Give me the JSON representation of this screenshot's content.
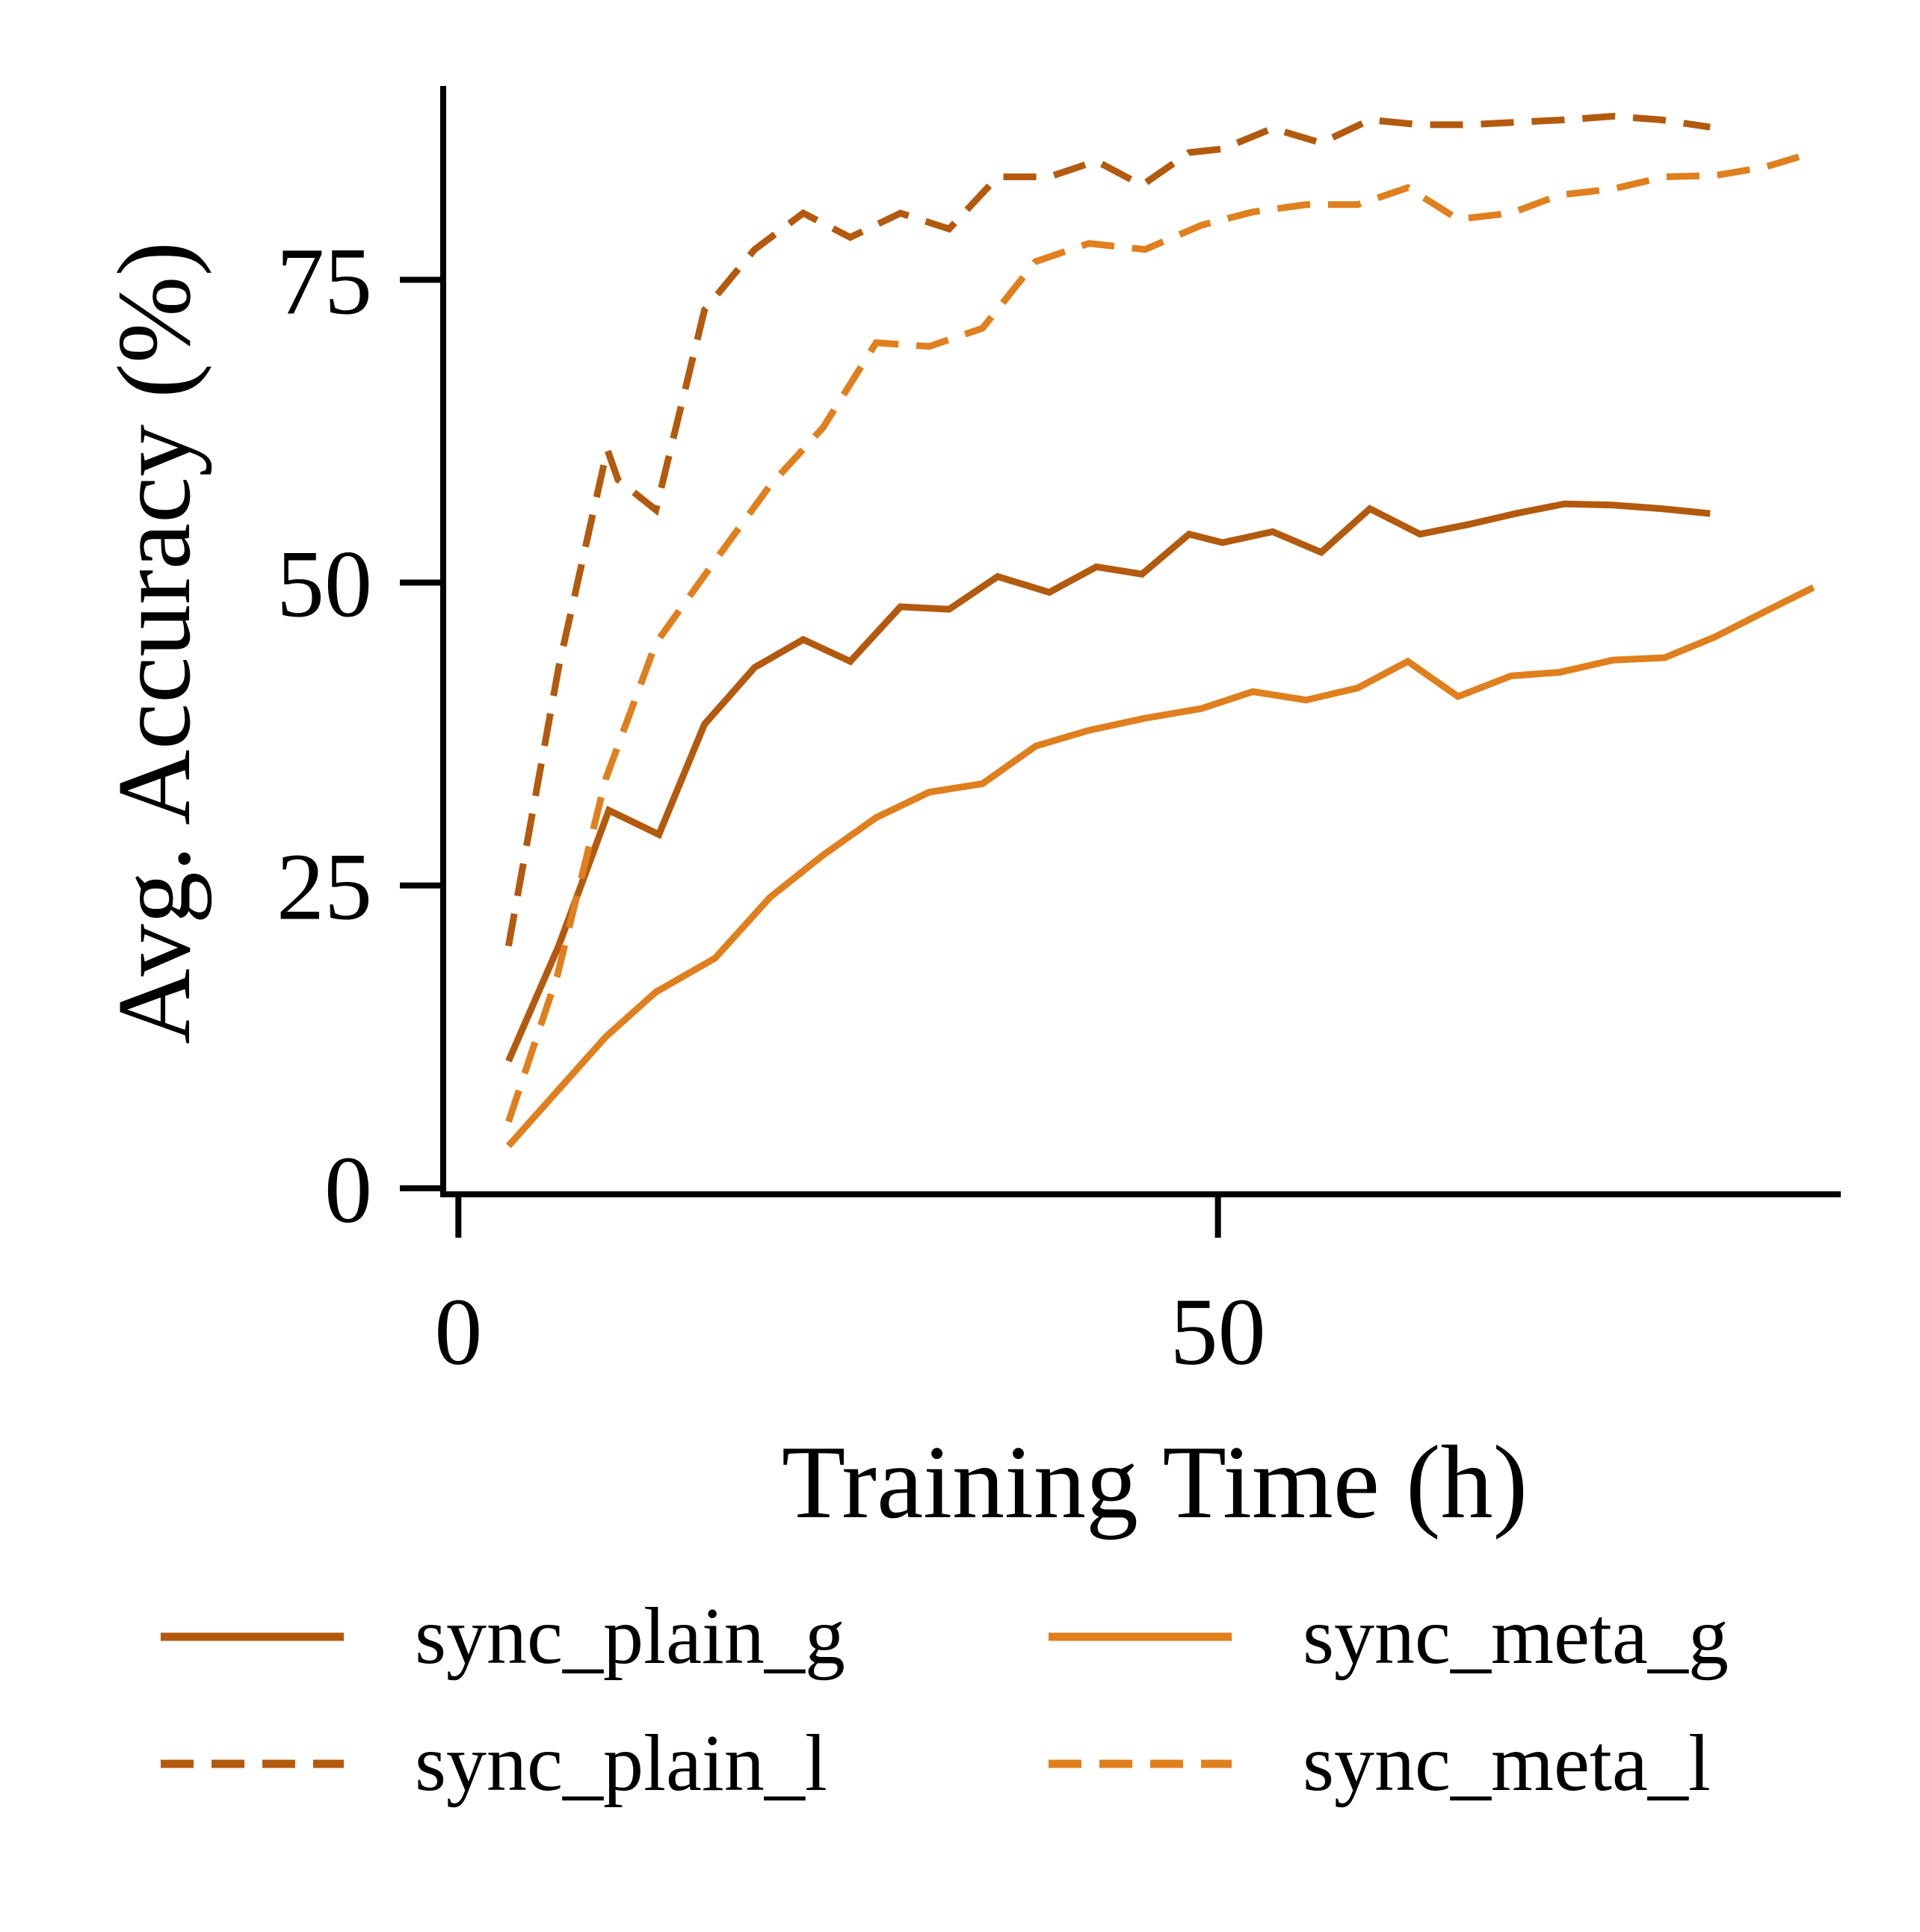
{
  "chart_data": {
    "type": "line",
    "xlabel": "Training Time (h)",
    "ylabel": "Avg. Accuracy (%)",
    "xlim": [
      -1,
      91
    ],
    "ylim": [
      -0.5,
      91
    ],
    "xticks": [
      0,
      50
    ],
    "yticks": [
      0,
      25,
      50,
      75
    ],
    "grid": false,
    "legend_placement": "bottom",
    "series": [
      {
        "name": "sync_plain_g",
        "color": "#B35A0E",
        "dash": "solid",
        "x": [
          3.3,
          6.6,
          9.9,
          13.2,
          16.2,
          19.5,
          22.7,
          25.8,
          29.1,
          32.3,
          35.5,
          38.9,
          42.0,
          45.0,
          48.1,
          50.3,
          53.6,
          56.8,
          60.0,
          63.3,
          66.5,
          69.6,
          72.8,
          76.0,
          79.2,
          82.4
        ],
        "y": [
          10.5,
          20,
          31.2,
          29.2,
          38.3,
          43,
          45.3,
          43.5,
          48,
          47.8,
          50.5,
          49.2,
          51.3,
          50.7,
          54,
          53.3,
          54.2,
          52.5,
          56.1,
          54,
          54.8,
          55.7,
          56.5,
          56.4,
          56.1,
          55.7
        ]
      },
      {
        "name": "sync_meta_g",
        "color": "#E07F1D",
        "dash": "solid",
        "x": [
          3.3,
          6.5,
          9.7,
          13.0,
          16.9,
          20.5,
          24.0,
          27.5,
          31.0,
          34.5,
          38.0,
          41.5,
          45.2,
          48.9,
          52.3,
          55.8,
          59.2,
          62.5,
          65.8,
          69.3,
          72.5,
          76.0,
          79.4,
          82.7,
          86.0,
          89.2
        ],
        "y": [
          3.5,
          8,
          12.5,
          16.2,
          19,
          24,
          27.5,
          30.6,
          32.7,
          33.4,
          36.5,
          37.8,
          38.8,
          39.6,
          41,
          40.3,
          41.3,
          43.5,
          40.6,
          42.3,
          42.6,
          43.6,
          43.8,
          45.5,
          47.6,
          49.6
        ]
      },
      {
        "name": "sync_plain_l",
        "color": "#B35A0E",
        "dash": "dashed",
        "x": [
          3.3,
          6.6,
          9.8,
          10.5,
          13.0,
          16.2,
          19.5,
          22.7,
          25.8,
          29.1,
          32.3,
          35.5,
          38.9,
          42.0,
          45.0,
          48.1,
          50.3,
          53.6,
          56.8,
          60.0,
          63.3,
          66.5,
          69.6,
          72.8,
          76.0,
          79.2,
          82.4
        ],
        "y": [
          20,
          43,
          61,
          58.5,
          56,
          72.5,
          77.5,
          80.5,
          78.5,
          80.5,
          79.2,
          83.5,
          83.5,
          84.8,
          82.8,
          85.5,
          85.8,
          87.5,
          86.3,
          88.2,
          87.8,
          87.8,
          88,
          88.2,
          88.5,
          88.2,
          87.6
        ]
      },
      {
        "name": "sync_meta_l",
        "color": "#E07F1D",
        "dash": "dashed",
        "x": [
          3.3,
          6.5,
          9.7,
          13.0,
          16.9,
          20.5,
          24.0,
          27.5,
          31.0,
          34.5,
          38.0,
          41.5,
          45.2,
          48.9,
          52.3,
          55.8,
          59.2,
          62.5,
          65.8,
          69.3,
          72.5,
          76.0,
          79.4,
          82.7,
          86.0,
          89.2
        ],
        "y": [
          5.5,
          17.5,
          33.8,
          45,
          51.8,
          58,
          62.8,
          69.8,
          69.5,
          71,
          76.5,
          78,
          77.5,
          79.5,
          80.6,
          81.2,
          81.2,
          82.6,
          80,
          80.5,
          82,
          82.5,
          83.5,
          83.6,
          84.3,
          85.5
        ]
      }
    ]
  }
}
